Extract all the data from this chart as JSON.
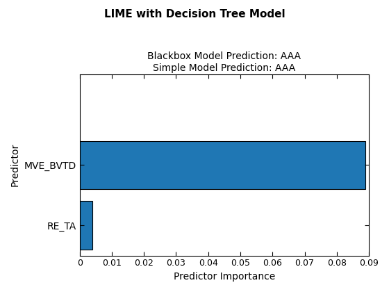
{
  "title": "LIME with Decision Tree Model",
  "subtitle1": "Blackbox Model Prediction: AAA",
  "subtitle2": "Simple Model Prediction: AAA",
  "xlabel": "Predictor Importance",
  "ylabel": "Predictor",
  "categories": [
    "RE_TA",
    "MVE_BVTD"
  ],
  "values": [
    0.004,
    0.089
  ],
  "bar_color": "#1f77b4",
  "xlim": [
    0,
    0.09
  ],
  "xticks": [
    0,
    0.01,
    0.02,
    0.03,
    0.04,
    0.05,
    0.06,
    0.07,
    0.08,
    0.09
  ],
  "ylim": [
    -0.5,
    2.5
  ],
  "background_color": "#ffffff",
  "title_fontsize": 11,
  "subtitle_fontsize": 10,
  "label_fontsize": 10,
  "tick_fontsize": 9,
  "bar_height": 0.8
}
